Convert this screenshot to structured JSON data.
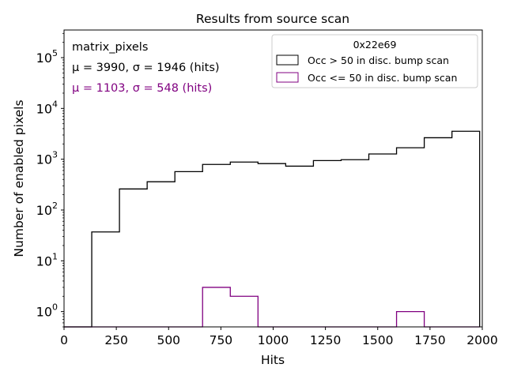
{
  "chart_data": {
    "type": "histogram",
    "title": "Results from source scan",
    "xlabel": "Hits",
    "ylabel": "Number of enabled pixels",
    "xlim": [
      0,
      2000
    ],
    "ylim": [
      0.5,
      350000
    ],
    "yscale": "log",
    "grid": false,
    "x_ticks": [
      0,
      250,
      500,
      750,
      1000,
      1250,
      1500,
      1750,
      2000
    ],
    "x_tick_labels": [
      "0",
      "250",
      "500",
      "750",
      "1000",
      "1250",
      "1500",
      "1750",
      "2000"
    ],
    "y_ticks": [
      1,
      10,
      100,
      1000,
      10000,
      100000
    ],
    "y_tick_bases": [
      "10",
      "10",
      "10",
      "10",
      "10",
      "10"
    ],
    "y_tick_exponents": [
      "0",
      "1",
      "2",
      "3",
      "4",
      "5"
    ],
    "bin_edges": [
      0,
      132.5,
      265,
      397.5,
      530,
      662.5,
      795,
      927.5,
      1060,
      1192.5,
      1325,
      1457.5,
      1590,
      1722.5,
      1855,
      1987.5
    ],
    "series": [
      {
        "name": "Occ > 50 in disc. bump scan",
        "color": "#000000",
        "values": [
          0,
          37,
          260,
          360,
          570,
          790,
          880,
          820,
          730,
          940,
          980,
          1270,
          1680,
          2650,
          3550
        ]
      },
      {
        "name": "Occ <= 50 in disc. bump scan",
        "color": "#800080",
        "values": [
          0,
          0,
          0,
          0,
          0,
          3,
          2,
          0,
          0,
          0,
          0,
          0,
          1,
          0,
          0
        ]
      }
    ],
    "legend": {
      "title": "0x22e69",
      "position": "upper right",
      "entries": [
        "Occ > 50 in disc. bump scan",
        "Occ <= 50 in disc. bump scan"
      ]
    },
    "annotations": [
      {
        "text": "matrix_pixels",
        "color": "#000000"
      },
      {
        "text": "μ = 3990, σ = 1946 (hits)",
        "color": "#000000"
      },
      {
        "text": "μ = 1103, σ = 548 (hits)",
        "color": "#800080"
      }
    ]
  }
}
